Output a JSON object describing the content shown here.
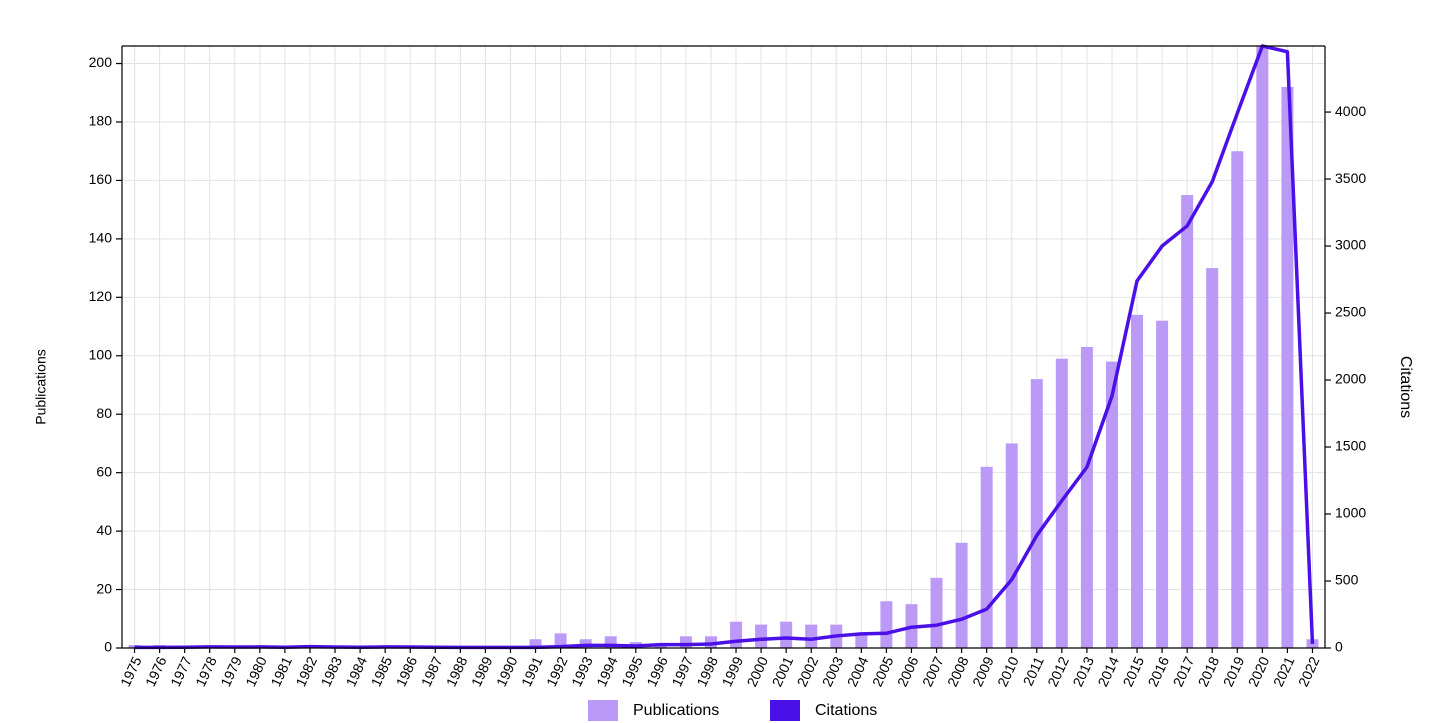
{
  "chart_data": {
    "type": "combo",
    "categories": [
      "1975",
      "1976",
      "1977",
      "1978",
      "1979",
      "1980",
      "1981",
      "1982",
      "1983",
      "1984",
      "1985",
      "1986",
      "1987",
      "1988",
      "1989",
      "1990",
      "1991",
      "1992",
      "1993",
      "1994",
      "1995",
      "1996",
      "1997",
      "1998",
      "1999",
      "2000",
      "2001",
      "2002",
      "2003",
      "2004",
      "2005",
      "2006",
      "2007",
      "2008",
      "2009",
      "2010",
      "2011",
      "2012",
      "2013",
      "2014",
      "2015",
      "2016",
      "2017",
      "2018",
      "2019",
      "2020",
      "2021",
      "2022"
    ],
    "series": [
      {
        "name": "Publications",
        "type": "bar",
        "axis": "y",
        "color": "#bb9af7",
        "values": [
          1,
          1,
          0,
          0,
          0,
          0,
          0,
          0,
          0,
          0,
          0,
          0,
          0,
          0,
          0,
          0,
          3,
          5,
          3,
          4,
          2,
          1,
          4,
          4,
          9,
          8,
          9,
          8,
          8,
          5,
          16,
          15,
          24,
          36,
          62,
          70,
          92,
          99,
          103,
          98,
          114,
          112,
          155,
          130,
          170,
          206,
          192,
          3
        ]
      },
      {
        "name": "Citations",
        "type": "line",
        "axis": "y2",
        "color": "#4b10e8",
        "values": [
          5,
          5,
          6,
          8,
          7,
          8,
          6,
          10,
          7,
          6,
          8,
          7,
          6,
          5,
          5,
          5,
          5,
          10,
          20,
          20,
          15,
          25,
          25,
          30,
          50,
          65,
          75,
          65,
          90,
          105,
          110,
          155,
          170,
          215,
          290,
          510,
          840,
          1100,
          1350,
          1880,
          2740,
          3000,
          3150,
          3480,
          3990,
          4493,
          4450,
          30
        ]
      }
    ],
    "ylabel": "Publications",
    "y2label": "Citations",
    "ylim": [
      0,
      206
    ],
    "yticks": [
      0,
      20,
      40,
      60,
      80,
      100,
      120,
      140,
      160,
      180,
      200
    ],
    "y2lim": [
      0,
      4493
    ],
    "y2ticks": [
      0,
      500,
      1000,
      1500,
      2000,
      2500,
      3000,
      3500,
      4000
    ],
    "grid": true,
    "legend": "bottom"
  }
}
